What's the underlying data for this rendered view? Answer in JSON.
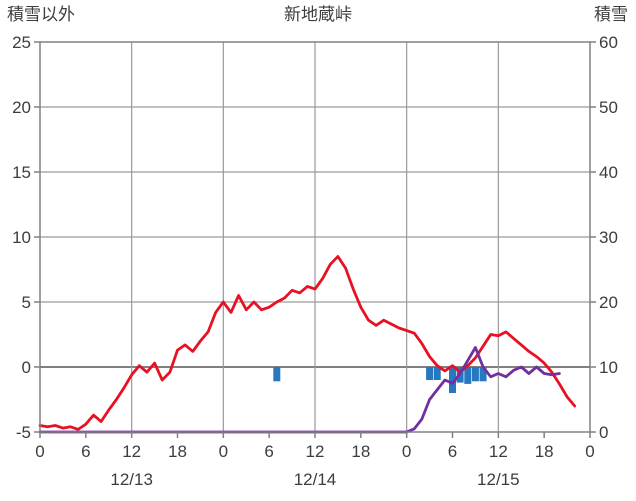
{
  "header": {
    "left_axis_title": "積雪以外",
    "chart_title": "新地蔵峠",
    "right_axis_title": "積雪"
  },
  "chart_data": {
    "type": "line",
    "title": "新地蔵峠",
    "x_hours_total": 72,
    "x_tick_hours": [
      0,
      6,
      12,
      18,
      24,
      30,
      36,
      42,
      48,
      54,
      60,
      66,
      72
    ],
    "x_tick_labels": [
      "0",
      "6",
      "12",
      "18",
      "0",
      "6",
      "12",
      "18",
      "0",
      "6",
      "12",
      "18",
      "0"
    ],
    "date_labels": [
      {
        "label": "12/13",
        "hour": 12
      },
      {
        "label": "12/14",
        "hour": 36
      },
      {
        "label": "12/15",
        "hour": 60
      }
    ],
    "gridline_hours": [
      12,
      24,
      36,
      48,
      60
    ],
    "y_left": {
      "label": "積雪以外",
      "min": -5,
      "max": 25,
      "ticks": [
        25,
        20,
        15,
        10,
        5,
        0,
        -5
      ]
    },
    "y_right": {
      "label": "積雪",
      "min": 0,
      "max": 60,
      "ticks": [
        60,
        50,
        40,
        30,
        20,
        10,
        0
      ]
    },
    "colors": {
      "red": "#e81123",
      "purple": "#7030a0",
      "blue": "#2679c0",
      "grid": "#9a9a9a",
      "axis": "#808080",
      "zero": "#808080",
      "text": "#3d3d3d"
    },
    "series": {
      "red_line": {
        "axis": "left",
        "start_hour": 0,
        "values": [
          -4.5,
          -4.6,
          -4.5,
          -4.7,
          -4.6,
          -4.8,
          -4.4,
          -3.7,
          -4.2,
          -3.3,
          -2.5,
          -1.6,
          -0.6,
          0.1,
          -0.4,
          0.3,
          -1.0,
          -0.4,
          1.3,
          1.7,
          1.2,
          2.0,
          2.7,
          4.2,
          5.0,
          4.2,
          5.5,
          4.4,
          5.0,
          4.4,
          4.6,
          5.0,
          5.3,
          5.9,
          5.7,
          6.2,
          6.0,
          6.8,
          7.9,
          8.5,
          7.6,
          6.0,
          4.6,
          3.6,
          3.2,
          3.6,
          3.3,
          3.0,
          2.8,
          2.6,
          1.8,
          0.8,
          0.1,
          -0.3,
          0.1,
          -0.4,
          0.1,
          0.7,
          1.6,
          2.5,
          2.4,
          2.7,
          2.2,
          1.7,
          1.2,
          0.8,
          0.3,
          -0.4,
          -1.3,
          -2.3,
          -3.0
        ]
      },
      "purple_line": {
        "axis": "right",
        "start_hour": 0,
        "values": [
          0,
          0,
          0,
          0,
          0,
          0,
          0,
          0,
          0,
          0,
          0,
          0,
          0,
          0,
          0,
          0,
          0,
          0,
          0,
          0,
          0,
          0,
          0,
          0,
          0,
          0,
          0,
          0,
          0,
          0,
          0,
          0,
          0,
          0,
          0,
          0,
          0,
          0,
          0,
          0,
          0,
          0,
          0,
          0,
          0,
          0,
          0,
          0,
          0,
          0.5,
          2,
          5,
          6.5,
          8,
          7.5,
          9,
          11,
          13,
          10,
          8.5,
          9,
          8.5,
          9.5,
          10,
          9,
          10,
          9,
          8.8,
          9
        ]
      },
      "blue_bars": {
        "axis": "left",
        "baseline": 0,
        "bars": [
          {
            "hour": 31,
            "depth": 1.1
          },
          {
            "hour": 51,
            "depth": 1.0
          },
          {
            "hour": 52,
            "depth": 1.0
          },
          {
            "hour": 54,
            "depth": 2.0
          },
          {
            "hour": 55,
            "depth": 1.2
          },
          {
            "hour": 56,
            "depth": 1.3
          },
          {
            "hour": 57,
            "depth": 1.1
          },
          {
            "hour": 58,
            "depth": 1.1
          }
        ]
      }
    }
  }
}
